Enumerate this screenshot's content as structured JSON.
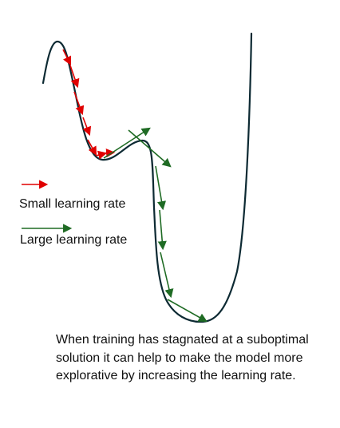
{
  "colors": {
    "curve": "#0d2a33",
    "small_rate": "#e00000",
    "large_rate": "#1f6b24",
    "text": "#111111"
  },
  "legend": {
    "small_label": "Small learning rate",
    "large_label": "Large learning rate"
  },
  "caption": "When training has stagnated at a suboptimal solution it can help to make the model more explorative by increasing the learning rate."
}
